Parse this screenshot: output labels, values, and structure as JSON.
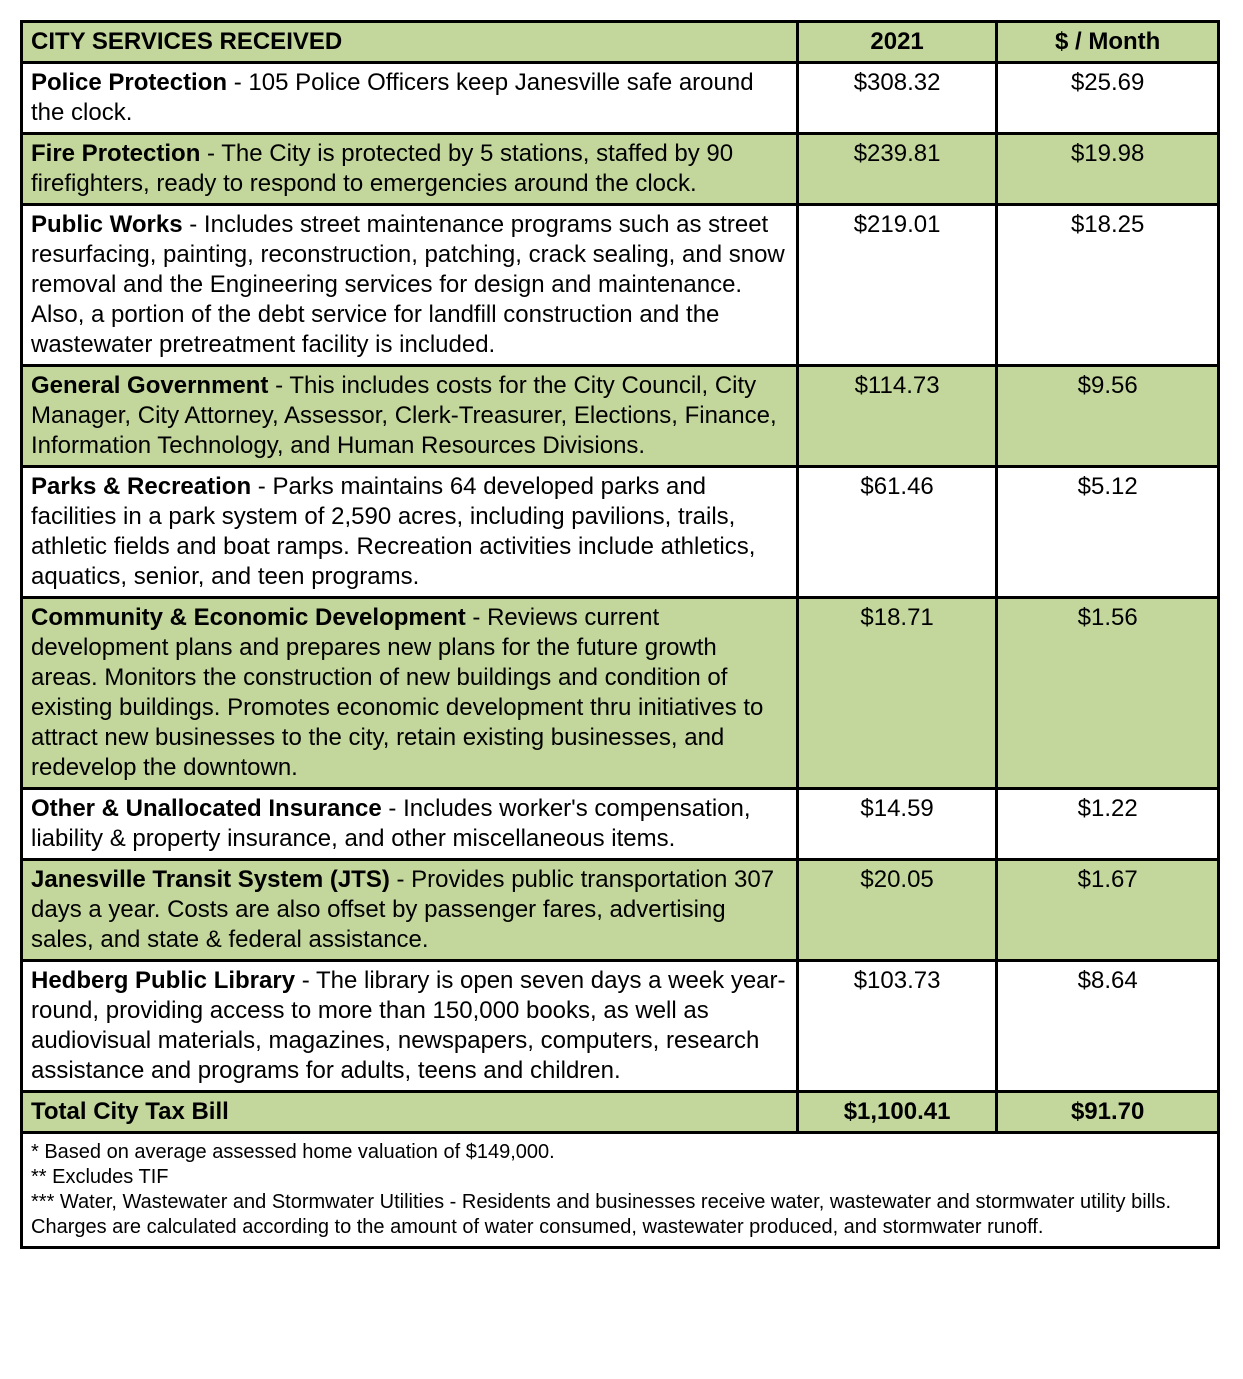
{
  "header": {
    "title": "CITY SERVICES RECEIVED",
    "year_col": "2021",
    "month_col": "$ / Month"
  },
  "colors": {
    "accent_bg": "#c3d69b",
    "border": "#000000",
    "text": "#000000"
  },
  "rows": [
    {
      "title": "Police Protection",
      "desc": " - 105 Police Officers keep Janesville safe around the clock.",
      "year": "$308.32",
      "month": "$25.69",
      "alt": false
    },
    {
      "title": "Fire Protection",
      "desc": " - The City is protected by 5 stations, staffed by 90 firefighters, ready to respond to emergencies around the clock.",
      "year": "$239.81",
      "month": "$19.98",
      "alt": true
    },
    {
      "title": "Public Works",
      "desc": " - Includes street maintenance programs such as street resurfacing, painting, reconstruction, patching, crack sealing, and snow removal and the Engineering services for design and maintenance. Also, a portion of the debt service for landfill construction and the wastewater pretreatment facility is included.",
      "year": "$219.01",
      "month": "$18.25",
      "alt": false
    },
    {
      "title": "General Government",
      "desc": " - This includes costs for the City Council, City Manager, City Attorney, Assessor, Clerk-Treasurer, Elections, Finance, Information Technology, and Human Resources Divisions.",
      "year": "$114.73",
      "month": "$9.56",
      "alt": true
    },
    {
      "title": "Parks & Recreation",
      "desc": " - Parks maintains 64 developed parks and facilities in a park system of 2,590 acres, including pavilions, trails, athletic fields and boat ramps. Recreation activities include athletics, aquatics, senior, and teen programs.",
      "year": "$61.46",
      "month": "$5.12",
      "alt": false
    },
    {
      "title": "Community & Economic Development",
      "desc": " - Reviews current development plans and prepares new plans for the future growth areas. Monitors the construction of new buildings and condition of existing buildings. Promotes economic development thru initiatives to attract new businesses to the city, retain existing businesses, and redevelop the downtown.",
      "year": "$18.71",
      "month": "$1.56",
      "alt": true
    },
    {
      "title": "Other & Unallocated Insurance",
      "desc": " - Includes worker's compensation, liability & property insurance, and other miscellaneous items.",
      "year": "$14.59",
      "month": "$1.22",
      "alt": false
    },
    {
      "title": "Janesville Transit System (JTS)",
      "desc": " - Provides public transportation 307 days a year. Costs are also offset by passenger fares, advertising sales, and state & federal assistance.",
      "year": "$20.05",
      "month": "$1.67",
      "alt": true
    },
    {
      "title": "Hedberg Public Library",
      "desc": " - The library is open seven days a week year-round, providing access to more than 150,000 books, as well as audiovisual materials, magazines, newspapers, computers, research assistance and programs for adults, teens and children.",
      "year": "$103.73",
      "month": "$8.64",
      "alt": false
    }
  ],
  "total": {
    "label": "Total City Tax Bill",
    "year": "$1,100.41",
    "month": "$91.70"
  },
  "footnotes": [
    "* Based on average assessed home valuation of $149,000.",
    "** Excludes TIF",
    "*** Water, Wastewater and Stormwater Utilities - Residents and businesses receive water, wastewater and stormwater utility bills. Charges are calculated according to the amount of water consumed, wastewater produced, and stormwater runoff."
  ]
}
